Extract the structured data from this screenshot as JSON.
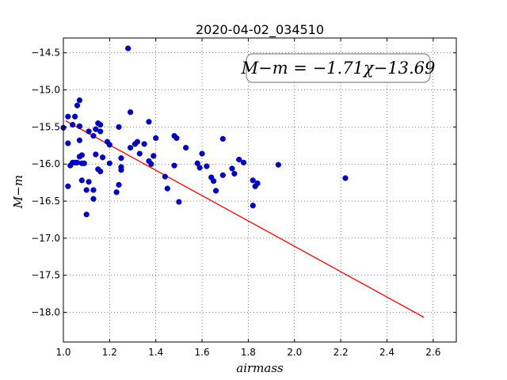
{
  "chart_data": {
    "type": "scatter",
    "title": "2020-04-02_034510",
    "xlabel": "airmass",
    "ylabel": "M−m",
    "xlim": [
      1.0,
      2.7
    ],
    "ylim": [
      -18.4,
      -14.3
    ],
    "grid": true,
    "x_ticks": [
      1.0,
      1.2,
      1.4,
      1.6,
      1.8,
      2.0,
      2.2,
      2.4,
      2.6
    ],
    "x_tick_labels": [
      "1.0",
      "1.2",
      "1.4",
      "1.6",
      "1.8",
      "2.0",
      "2.2",
      "2.4",
      "2.6"
    ],
    "y_ticks": [
      -14.5,
      -15.0,
      -15.5,
      -16.0,
      -16.5,
      -17.0,
      -17.5,
      -18.0
    ],
    "y_tick_labels": [
      "−14.5",
      "−15.0",
      "−15.5",
      "−16.0",
      "−16.5",
      "−17.0",
      "−17.5",
      "−18.0"
    ],
    "annotation": "M−m = −1.71χ−13.69",
    "fit": {
      "slope": -1.71,
      "intercept": -13.69,
      "x_range": [
        1.01,
        2.56
      ],
      "color": "#ff0000"
    },
    "point_color": "#0000cc",
    "points": [
      [
        1.0,
        -15.51
      ],
      [
        1.02,
        -15.36
      ],
      [
        1.02,
        -15.72
      ],
      [
        1.02,
        -16.3
      ],
      [
        1.03,
        -16.02
      ],
      [
        1.04,
        -15.47
      ],
      [
        1.04,
        -15.98
      ],
      [
        1.05,
        -15.36
      ],
      [
        1.05,
        -15.98
      ],
      [
        1.06,
        -15.21
      ],
      [
        1.06,
        -15.98
      ],
      [
        1.07,
        -15.14
      ],
      [
        1.07,
        -15.49
      ],
      [
        1.07,
        -15.68
      ],
      [
        1.07,
        -15.9
      ],
      [
        1.08,
        -15.88
      ],
      [
        1.08,
        -15.99
      ],
      [
        1.08,
        -16.22
      ],
      [
        1.09,
        -15.99
      ],
      [
        1.1,
        -16.35
      ],
      [
        1.1,
        -16.68
      ],
      [
        1.11,
        -15.56
      ],
      [
        1.11,
        -16.24
      ],
      [
        1.13,
        -15.62
      ],
      [
        1.13,
        -16.47
      ],
      [
        1.13,
        -16.35
      ],
      [
        1.14,
        -15.87
      ],
      [
        1.14,
        -15.53
      ],
      [
        1.15,
        -15.45
      ],
      [
        1.15,
        -16.07
      ],
      [
        1.16,
        -16.1
      ],
      [
        1.16,
        -15.47
      ],
      [
        1.16,
        -15.56
      ],
      [
        1.17,
        -15.91
      ],
      [
        1.19,
        -15.7
      ],
      [
        1.2,
        -15.74
      ],
      [
        1.2,
        -15.99
      ],
      [
        1.23,
        -16.38
      ],
      [
        1.24,
        -15.5
      ],
      [
        1.24,
        -16.28
      ],
      [
        1.25,
        -16.04
      ],
      [
        1.25,
        -16.08
      ],
      [
        1.25,
        -15.92
      ],
      [
        1.28,
        -14.44
      ],
      [
        1.29,
        -15.3
      ],
      [
        1.29,
        -15.78
      ],
      [
        1.31,
        -15.73
      ],
      [
        1.32,
        -15.7
      ],
      [
        1.33,
        -15.86
      ],
      [
        1.35,
        -15.73
      ],
      [
        1.37,
        -15.43
      ],
      [
        1.37,
        -15.96
      ],
      [
        1.38,
        -16.0
      ],
      [
        1.39,
        -15.89
      ],
      [
        1.4,
        -15.65
      ],
      [
        1.44,
        -16.17
      ],
      [
        1.45,
        -16.33
      ],
      [
        1.48,
        -15.62
      ],
      [
        1.48,
        -16.02
      ],
      [
        1.49,
        -15.65
      ],
      [
        1.5,
        -16.51
      ],
      [
        1.53,
        -15.78
      ],
      [
        1.58,
        -15.99
      ],
      [
        1.59,
        -16.05
      ],
      [
        1.6,
        -15.86
      ],
      [
        1.62,
        -16.03
      ],
      [
        1.64,
        -16.18
      ],
      [
        1.65,
        -16.23
      ],
      [
        1.66,
        -16.36
      ],
      [
        1.69,
        -15.66
      ],
      [
        1.69,
        -16.15
      ],
      [
        1.73,
        -16.06
      ],
      [
        1.74,
        -16.13
      ],
      [
        1.76,
        -15.94
      ],
      [
        1.78,
        -15.98
      ],
      [
        1.82,
        -16.22
      ],
      [
        1.82,
        -16.56
      ],
      [
        1.83,
        -16.3
      ],
      [
        1.84,
        -16.26
      ],
      [
        1.93,
        -16.01
      ],
      [
        2.22,
        -16.19
      ]
    ]
  }
}
